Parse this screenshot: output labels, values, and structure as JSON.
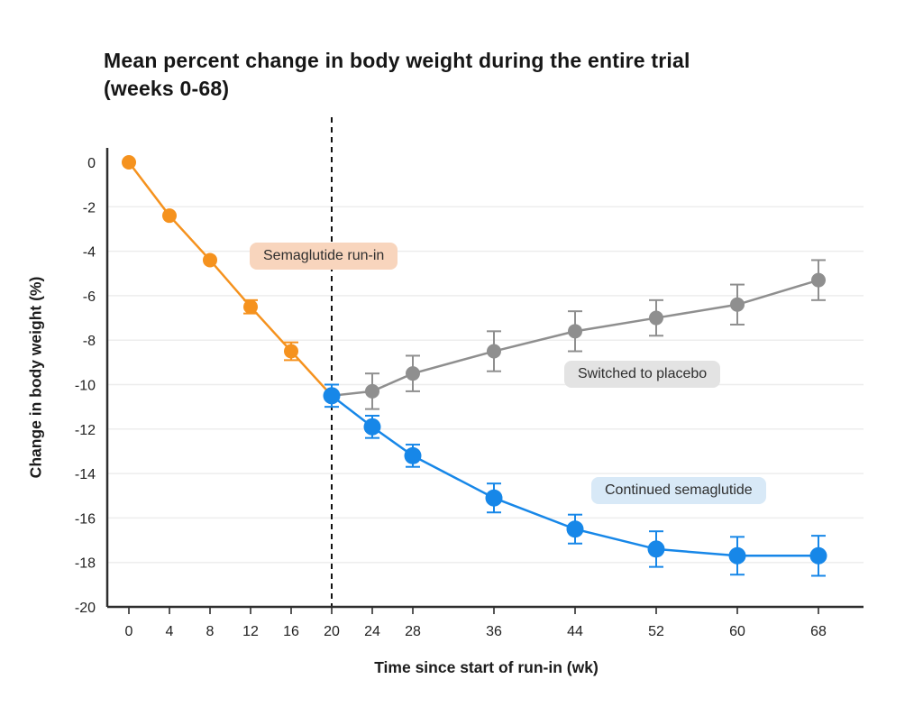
{
  "chart_data": {
    "type": "line",
    "title": "Mean percent change in body weight during the entire trial (weeks 0-68)",
    "title_lines": [
      "Mean percent change in body weight during the entire trial",
      "(weeks 0-68)"
    ],
    "xlabel": "Time since start of run-in (wk)",
    "ylabel": "Change in body weight (%)",
    "xticks": [
      0,
      4,
      8,
      12,
      16,
      20,
      24,
      28,
      36,
      44,
      52,
      60,
      68
    ],
    "yticks": [
      0,
      -2,
      -4,
      -6,
      -8,
      -10,
      -12,
      -14,
      -16,
      -18,
      -20
    ],
    "xlim": [
      0,
      68
    ],
    "ylim": [
      -20,
      0
    ],
    "grid": "horizontal",
    "reference_line": {
      "x": 20,
      "style": "dashed",
      "color": "#111111"
    },
    "series": [
      {
        "name": "Semaglutide run-in",
        "color": "#F5921E",
        "marker_radius": 8,
        "x": [
          0,
          4,
          8,
          12,
          16,
          20
        ],
        "y": [
          0,
          -2.4,
          -4.4,
          -6.5,
          -8.5,
          -10.5
        ],
        "err": [
          null,
          null,
          null,
          0.3,
          0.4,
          null
        ]
      },
      {
        "name": "Switched to placebo",
        "color": "#8F8F8F",
        "marker_radius": 8,
        "skip_marker_first": true,
        "x": [
          20,
          24,
          28,
          36,
          44,
          52,
          60,
          68
        ],
        "y": [
          -10.5,
          -10.3,
          -9.5,
          -8.5,
          -7.6,
          -7.0,
          -6.4,
          -5.3
        ],
        "err": [
          null,
          0.8,
          0.8,
          0.9,
          0.9,
          0.8,
          0.9,
          0.9
        ]
      },
      {
        "name": "Continued semaglutide",
        "color": "#1787E8",
        "marker_radius": 9.5,
        "x": [
          20,
          24,
          28,
          36,
          44,
          52,
          60,
          68
        ],
        "y": [
          -10.5,
          -11.9,
          -13.2,
          -15.1,
          -16.5,
          -17.4,
          -17.7,
          -17.7
        ],
        "err": [
          0.5,
          0.5,
          0.5,
          0.65,
          0.65,
          0.8,
          0.85,
          0.9
        ]
      }
    ],
    "annotations": [
      {
        "label": "Semaglutide run-in",
        "bg": "#F8D5BD"
      },
      {
        "label": "Switched to placebo",
        "bg": "#E3E3E3"
      },
      {
        "label": "Continued semaglutide",
        "bg": "#D8E9F7"
      }
    ],
    "colors": {
      "axis": "#2e2e2e",
      "grid": "#ededed",
      "tick_text": "#222222",
      "runin_orange": "#F5921E",
      "placebo_gray": "#8F8F8F",
      "semaglutide_blue": "#1787E8"
    }
  }
}
